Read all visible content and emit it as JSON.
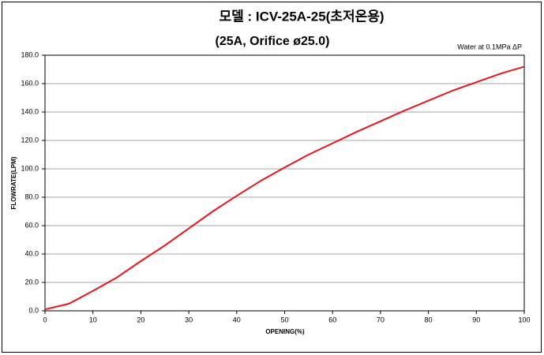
{
  "chart_data": {
    "type": "line",
    "title": "모델 : ICV-25A-25(초저온용)",
    "subtitle": "(25A, Orifice ø25.0)",
    "annotation": "Water at 0.1MPa ΔP",
    "x_label": "OPENING(%)",
    "y_label": "FLOWRATE(LPM)",
    "x": [
      0,
      5,
      10,
      15,
      20,
      25,
      30,
      35,
      40,
      45,
      50,
      55,
      60,
      65,
      70,
      75,
      80,
      85,
      90,
      95,
      100
    ],
    "series": [
      {
        "color": "#e8141b",
        "values": [
          1,
          5,
          14,
          23.5,
          35,
          46,
          58,
          70,
          81,
          91.5,
          101,
          110,
          118,
          126,
          133.5,
          141,
          148,
          155,
          161,
          167,
          172
        ]
      }
    ],
    "xlim": [
      0,
      100
    ],
    "ylim": [
      0,
      180
    ],
    "xticks": [
      0,
      10,
      20,
      30,
      40,
      50,
      60,
      70,
      80,
      90,
      100
    ],
    "yticks": [
      {
        "value": 0,
        "label": "0.0"
      },
      {
        "value": 20,
        "label": "20.0"
      },
      {
        "value": 40,
        "label": "40.0"
      },
      {
        "value": 60,
        "label": "60.0"
      },
      {
        "value": 80,
        "label": "80.0"
      },
      {
        "value": 100,
        "label": "100.0"
      },
      {
        "value": 120,
        "label": "120.0"
      },
      {
        "value": 140,
        "label": "140.0"
      },
      {
        "value": 160,
        "label": "160.0"
      },
      {
        "value": 180,
        "label": "180.0"
      }
    ],
    "grid": true
  }
}
